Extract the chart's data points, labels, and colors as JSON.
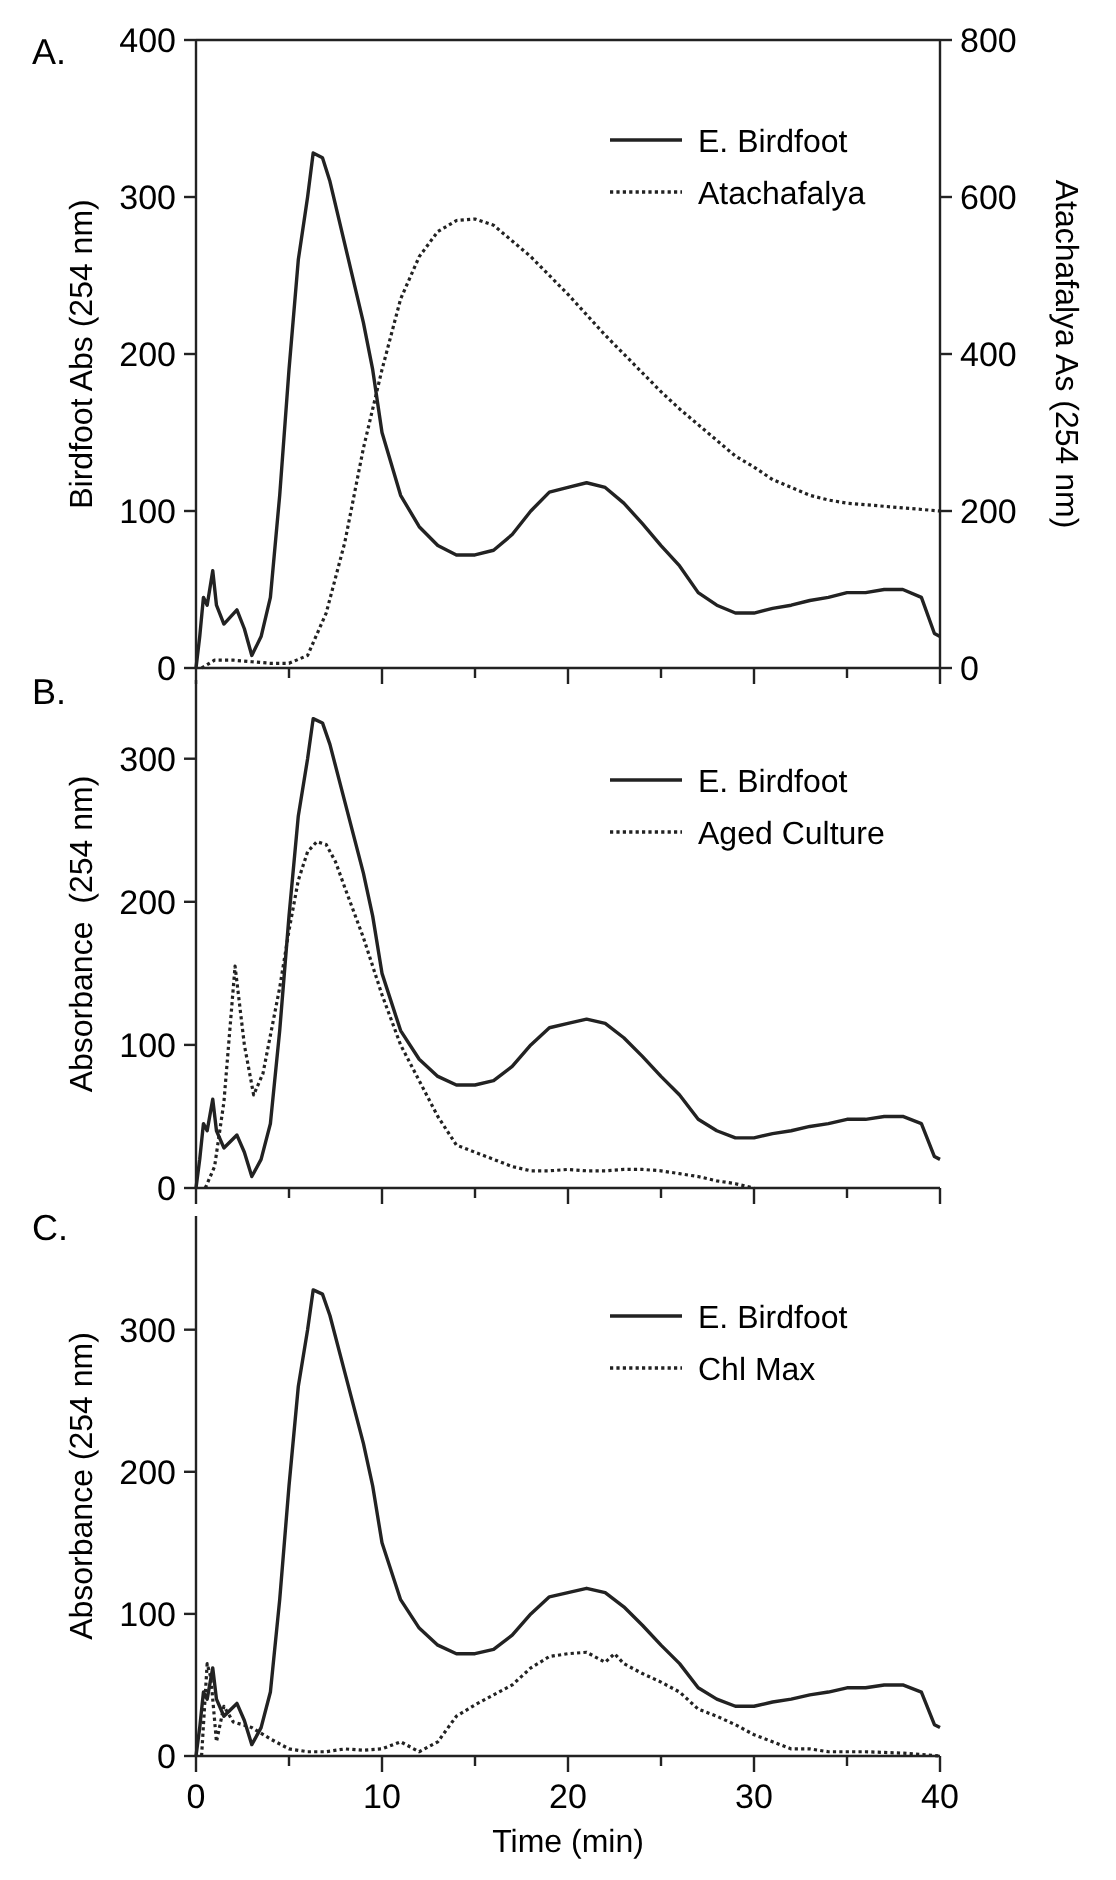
{
  "chart_data": [
    {
      "type": "line",
      "annotations": [
        "A."
      ],
      "ylabel": "Birdfoot Abs (254 nm)",
      "y2label": "Atachafalya As (254 nm)",
      "xlim": [
        0,
        40
      ],
      "xticks": [
        0,
        {
          "value": 5,
          "label": null
        },
        10,
        {
          "value": 15,
          "label": null
        },
        20,
        {
          "value": 25,
          "label": null
        },
        30,
        {
          "value": 35,
          "label": null
        },
        40
      ],
      "ylim": [
        0,
        400
      ],
      "yticks": [
        0,
        100,
        200,
        300,
        400
      ],
      "y2lim": [
        0,
        800
      ],
      "y2ticks": [
        0,
        200,
        400,
        600,
        800
      ],
      "tick_labels": "y",
      "grid": false,
      "legend": "top right",
      "series": [
        {
          "name": "E. Birdfoot",
          "color": "#222222",
          "line_style": "solid",
          "x": [
            0,
            0.2,
            0.4,
            0.6,
            0.9,
            1.1,
            1.5,
            2.2,
            2.6,
            3,
            3.5,
            4,
            4.5,
            5,
            5.5,
            6,
            6.3,
            6.8,
            7.2,
            8,
            9,
            9.5,
            10,
            11,
            12,
            13,
            14,
            15,
            16,
            17,
            18,
            19,
            20,
            21,
            22,
            23,
            24,
            25,
            26,
            27,
            28,
            29,
            30,
            31,
            32,
            33,
            34,
            35,
            36,
            37,
            38,
            39,
            39.7,
            40
          ],
          "values": [
            0,
            20,
            45,
            40,
            62,
            40,
            28,
            37,
            25,
            8,
            20,
            45,
            110,
            190,
            260,
            300,
            328,
            325,
            310,
            270,
            220,
            190,
            150,
            110,
            90,
            78,
            72,
            72,
            75,
            85,
            100,
            112,
            115,
            118,
            115,
            105,
            92,
            78,
            65,
            48,
            40,
            35,
            35,
            38,
            40,
            43,
            45,
            48,
            48,
            50,
            50,
            45,
            22,
            20
          ]
        },
        {
          "name": "Atachafalya",
          "color": "#222222",
          "line_style": "dotted",
          "axis": "y2",
          "x": [
            0.3,
            1,
            2,
            3,
            4,
            5,
            6,
            7,
            8,
            9,
            10,
            11,
            12,
            13,
            14,
            15,
            16,
            17,
            18,
            19,
            20,
            21,
            22,
            23,
            24,
            25,
            26,
            27,
            28,
            29,
            30,
            31,
            32,
            33,
            34,
            35,
            36,
            38,
            40
          ],
          "values": [
            0,
            10,
            10,
            8,
            6,
            6,
            16,
            70,
            160,
            280,
            380,
            470,
            524,
            556,
            570,
            572,
            564,
            544,
            524,
            500,
            476,
            450,
            424,
            400,
            376,
            352,
            330,
            310,
            290,
            270,
            256,
            240,
            230,
            220,
            214,
            210,
            208,
            204,
            200
          ]
        }
      ]
    },
    {
      "type": "line",
      "annotations": [
        "B."
      ],
      "ylabel": "Absorbance  (254 nm)",
      "xlim": [
        0,
        40
      ],
      "xticks": [
        0,
        {
          "value": 5,
          "label": null
        },
        10,
        {
          "value": 15,
          "label": null
        },
        20,
        {
          "value": 25,
          "label": null
        },
        30,
        {
          "value": 35,
          "label": null
        },
        40
      ],
      "ylim": [
        0,
        355
      ],
      "yticks": [
        0,
        100,
        200,
        300
      ],
      "tick_labels": "y",
      "grid": false,
      "legend": "top right",
      "series": [
        {
          "name": "E. Birdfoot",
          "color": "#222222",
          "line_style": "solid",
          "x": [
            0,
            0.2,
            0.4,
            0.6,
            0.9,
            1.1,
            1.5,
            2.2,
            2.6,
            3,
            3.5,
            4,
            4.5,
            5,
            5.5,
            6,
            6.3,
            6.8,
            7.2,
            8,
            9,
            9.5,
            10,
            11,
            12,
            13,
            14,
            15,
            16,
            17,
            18,
            19,
            20,
            21,
            22,
            23,
            24,
            25,
            26,
            27,
            28,
            29,
            30,
            31,
            32,
            33,
            34,
            35,
            36,
            37,
            38,
            39,
            39.7,
            40
          ],
          "values": [
            0,
            20,
            45,
            40,
            62,
            40,
            28,
            37,
            25,
            8,
            20,
            45,
            110,
            190,
            260,
            300,
            328,
            325,
            310,
            270,
            220,
            190,
            150,
            110,
            90,
            78,
            72,
            72,
            75,
            85,
            100,
            112,
            115,
            118,
            115,
            105,
            92,
            78,
            65,
            48,
            40,
            35,
            35,
            38,
            40,
            43,
            45,
            48,
            48,
            50,
            50,
            45,
            22,
            20
          ]
        },
        {
          "name": "Aged Culture",
          "color": "#222222",
          "line_style": "dotted",
          "x": [
            0.5,
            1,
            1.5,
            2.1,
            2.6,
            3.1,
            3.6,
            4.5,
            5,
            5.5,
            6,
            6.5,
            7,
            7.5,
            8,
            9,
            10,
            11,
            12,
            13,
            14,
            15,
            16,
            17,
            18,
            19,
            20,
            21,
            22,
            23,
            24,
            25,
            26,
            27,
            28,
            29,
            30
          ],
          "values": [
            0,
            15,
            60,
            155,
            100,
            65,
            80,
            140,
            180,
            215,
            235,
            242,
            240,
            228,
            210,
            175,
            135,
            100,
            75,
            50,
            30,
            25,
            20,
            15,
            12,
            12,
            13,
            12,
            12,
            13,
            13,
            12,
            10,
            8,
            5,
            3,
            0
          ]
        }
      ]
    },
    {
      "type": "line",
      "annotations": [
        "C."
      ],
      "ylabel": "Absorbance (254 nm)",
      "xlabel": "Time (min)",
      "xlim": [
        0,
        40
      ],
      "xticks": [
        0,
        {
          "value": 5,
          "label": null
        },
        10,
        {
          "value": 15,
          "label": null
        },
        20,
        {
          "value": 25,
          "label": null
        },
        30,
        {
          "value": 35,
          "label": null
        },
        40
      ],
      "ylim": [
        0,
        380
      ],
      "yticks": [
        0,
        100,
        200,
        300
      ],
      "grid": false,
      "legend": "top right",
      "series": [
        {
          "name": "E. Birdfoot",
          "color": "#222222",
          "line_style": "solid",
          "x": [
            0,
            0.2,
            0.4,
            0.6,
            0.9,
            1.1,
            1.5,
            2.2,
            2.6,
            3,
            3.5,
            4,
            4.5,
            5,
            5.5,
            6,
            6.3,
            6.8,
            7.2,
            8,
            9,
            9.5,
            10,
            11,
            12,
            13,
            14,
            15,
            16,
            17,
            18,
            19,
            20,
            21,
            22,
            23,
            24,
            25,
            26,
            27,
            28,
            29,
            30,
            31,
            32,
            33,
            34,
            35,
            36,
            37,
            38,
            39,
            39.7,
            40
          ],
          "values": [
            0,
            20,
            45,
            40,
            62,
            40,
            28,
            37,
            25,
            8,
            20,
            45,
            110,
            190,
            260,
            300,
            328,
            325,
            310,
            270,
            220,
            190,
            150,
            110,
            90,
            78,
            72,
            72,
            75,
            85,
            100,
            112,
            115,
            118,
            115,
            105,
            92,
            78,
            65,
            48,
            40,
            35,
            35,
            38,
            40,
            43,
            45,
            48,
            48,
            50,
            50,
            45,
            22,
            20
          ]
        },
        {
          "name": "Chl Max",
          "color": "#222222",
          "line_style": "dotted",
          "x": [
            0.3,
            0.6,
            0.8,
            1.1,
            1.5,
            2,
            3,
            4,
            5,
            6,
            7,
            8,
            9,
            10,
            11,
            12,
            13,
            14,
            15,
            16,
            17,
            18,
            19,
            20,
            21,
            22,
            22.5,
            23,
            24,
            25,
            26,
            27,
            28,
            29,
            30,
            31,
            32,
            33,
            34,
            36,
            38,
            40
          ],
          "values": [
            0,
            65,
            55,
            10,
            35,
            24,
            20,
            12,
            5,
            3,
            3,
            5,
            4,
            5,
            10,
            3,
            10,
            28,
            36,
            43,
            50,
            62,
            70,
            72,
            73,
            66,
            72,
            65,
            58,
            52,
            45,
            33,
            28,
            22,
            15,
            10,
            5,
            5,
            3,
            3,
            2,
            0
          ]
        }
      ]
    }
  ]
}
